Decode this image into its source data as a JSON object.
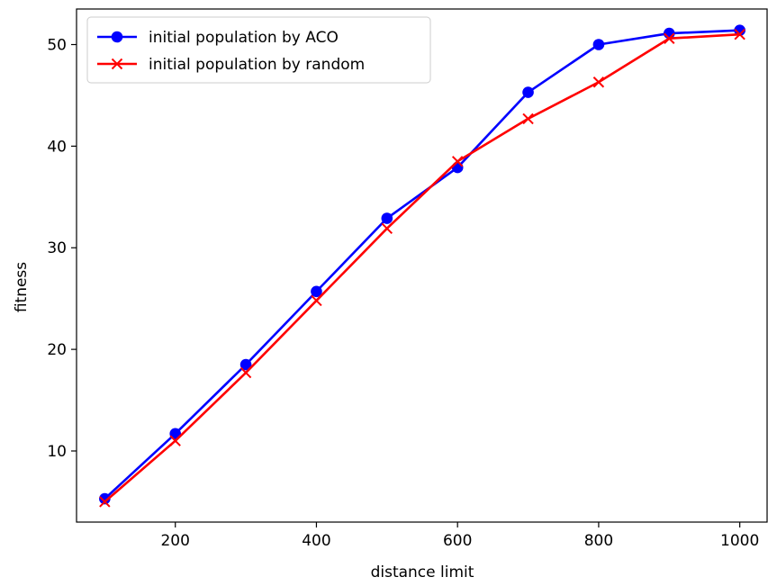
{
  "chart_data": {
    "type": "line",
    "xlabel": "distance limit",
    "ylabel": "fitness",
    "xlim": [
      60,
      1040
    ],
    "ylim": [
      3.0,
      53.5
    ],
    "xticks": [
      200,
      400,
      600,
      800,
      1000
    ],
    "yticks": [
      10,
      20,
      30,
      40,
      50
    ],
    "x": [
      100,
      200,
      300,
      400,
      500,
      600,
      700,
      800,
      900,
      1000
    ],
    "series": [
      {
        "name": "initial population by ACO",
        "color": "#0000ff",
        "marker": "circle",
        "values": [
          5.3,
          11.7,
          18.5,
          25.7,
          32.9,
          37.9,
          45.3,
          50.0,
          51.1,
          51.4
        ]
      },
      {
        "name": "initial population by random",
        "color": "#ff0000",
        "marker": "x",
        "values": [
          5.0,
          11.0,
          17.7,
          24.8,
          31.9,
          38.5,
          42.7,
          46.3,
          50.6,
          51.0
        ]
      }
    ],
    "legend_position": "top-left",
    "grid": false
  }
}
